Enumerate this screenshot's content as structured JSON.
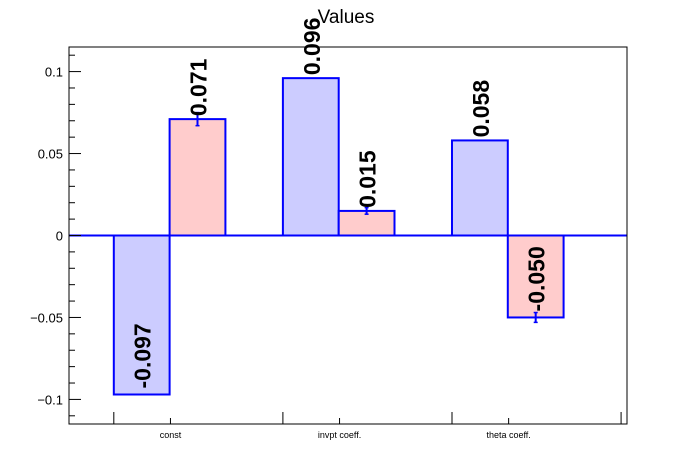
{
  "chart_data": {
    "type": "bar",
    "title": "Values",
    "categories": [
      "const",
      "invpt coeff.",
      "theta coeff."
    ],
    "series": [
      {
        "values": [
          -0.097,
          0.096,
          0.058
        ],
        "errors": [
          0,
          0,
          0
        ],
        "labels": [
          "-0.097",
          "0.096",
          "0.058"
        ]
      },
      {
        "values": [
          0.071,
          0.015,
          -0.05
        ],
        "errors": [
          0.004,
          0.002,
          0.003
        ],
        "labels": [
          "0.071",
          "0.015",
          "-0.050"
        ]
      }
    ],
    "ylim": [
      -0.115,
      0.115
    ],
    "yticks": [
      -0.1,
      -0.05,
      0,
      0.05,
      0.1
    ],
    "ytick_labels": [
      "−0.1",
      "−0.05",
      "0",
      "0.05",
      "0.1"
    ],
    "xlabel": "",
    "ylabel": "",
    "grid": false,
    "colors": {
      "series_fills": [
        "#ccccff",
        "#ffcccc"
      ],
      "bar_stroke": "#0000ff",
      "zero_line": "#0000ff",
      "axis": "#000000"
    }
  }
}
